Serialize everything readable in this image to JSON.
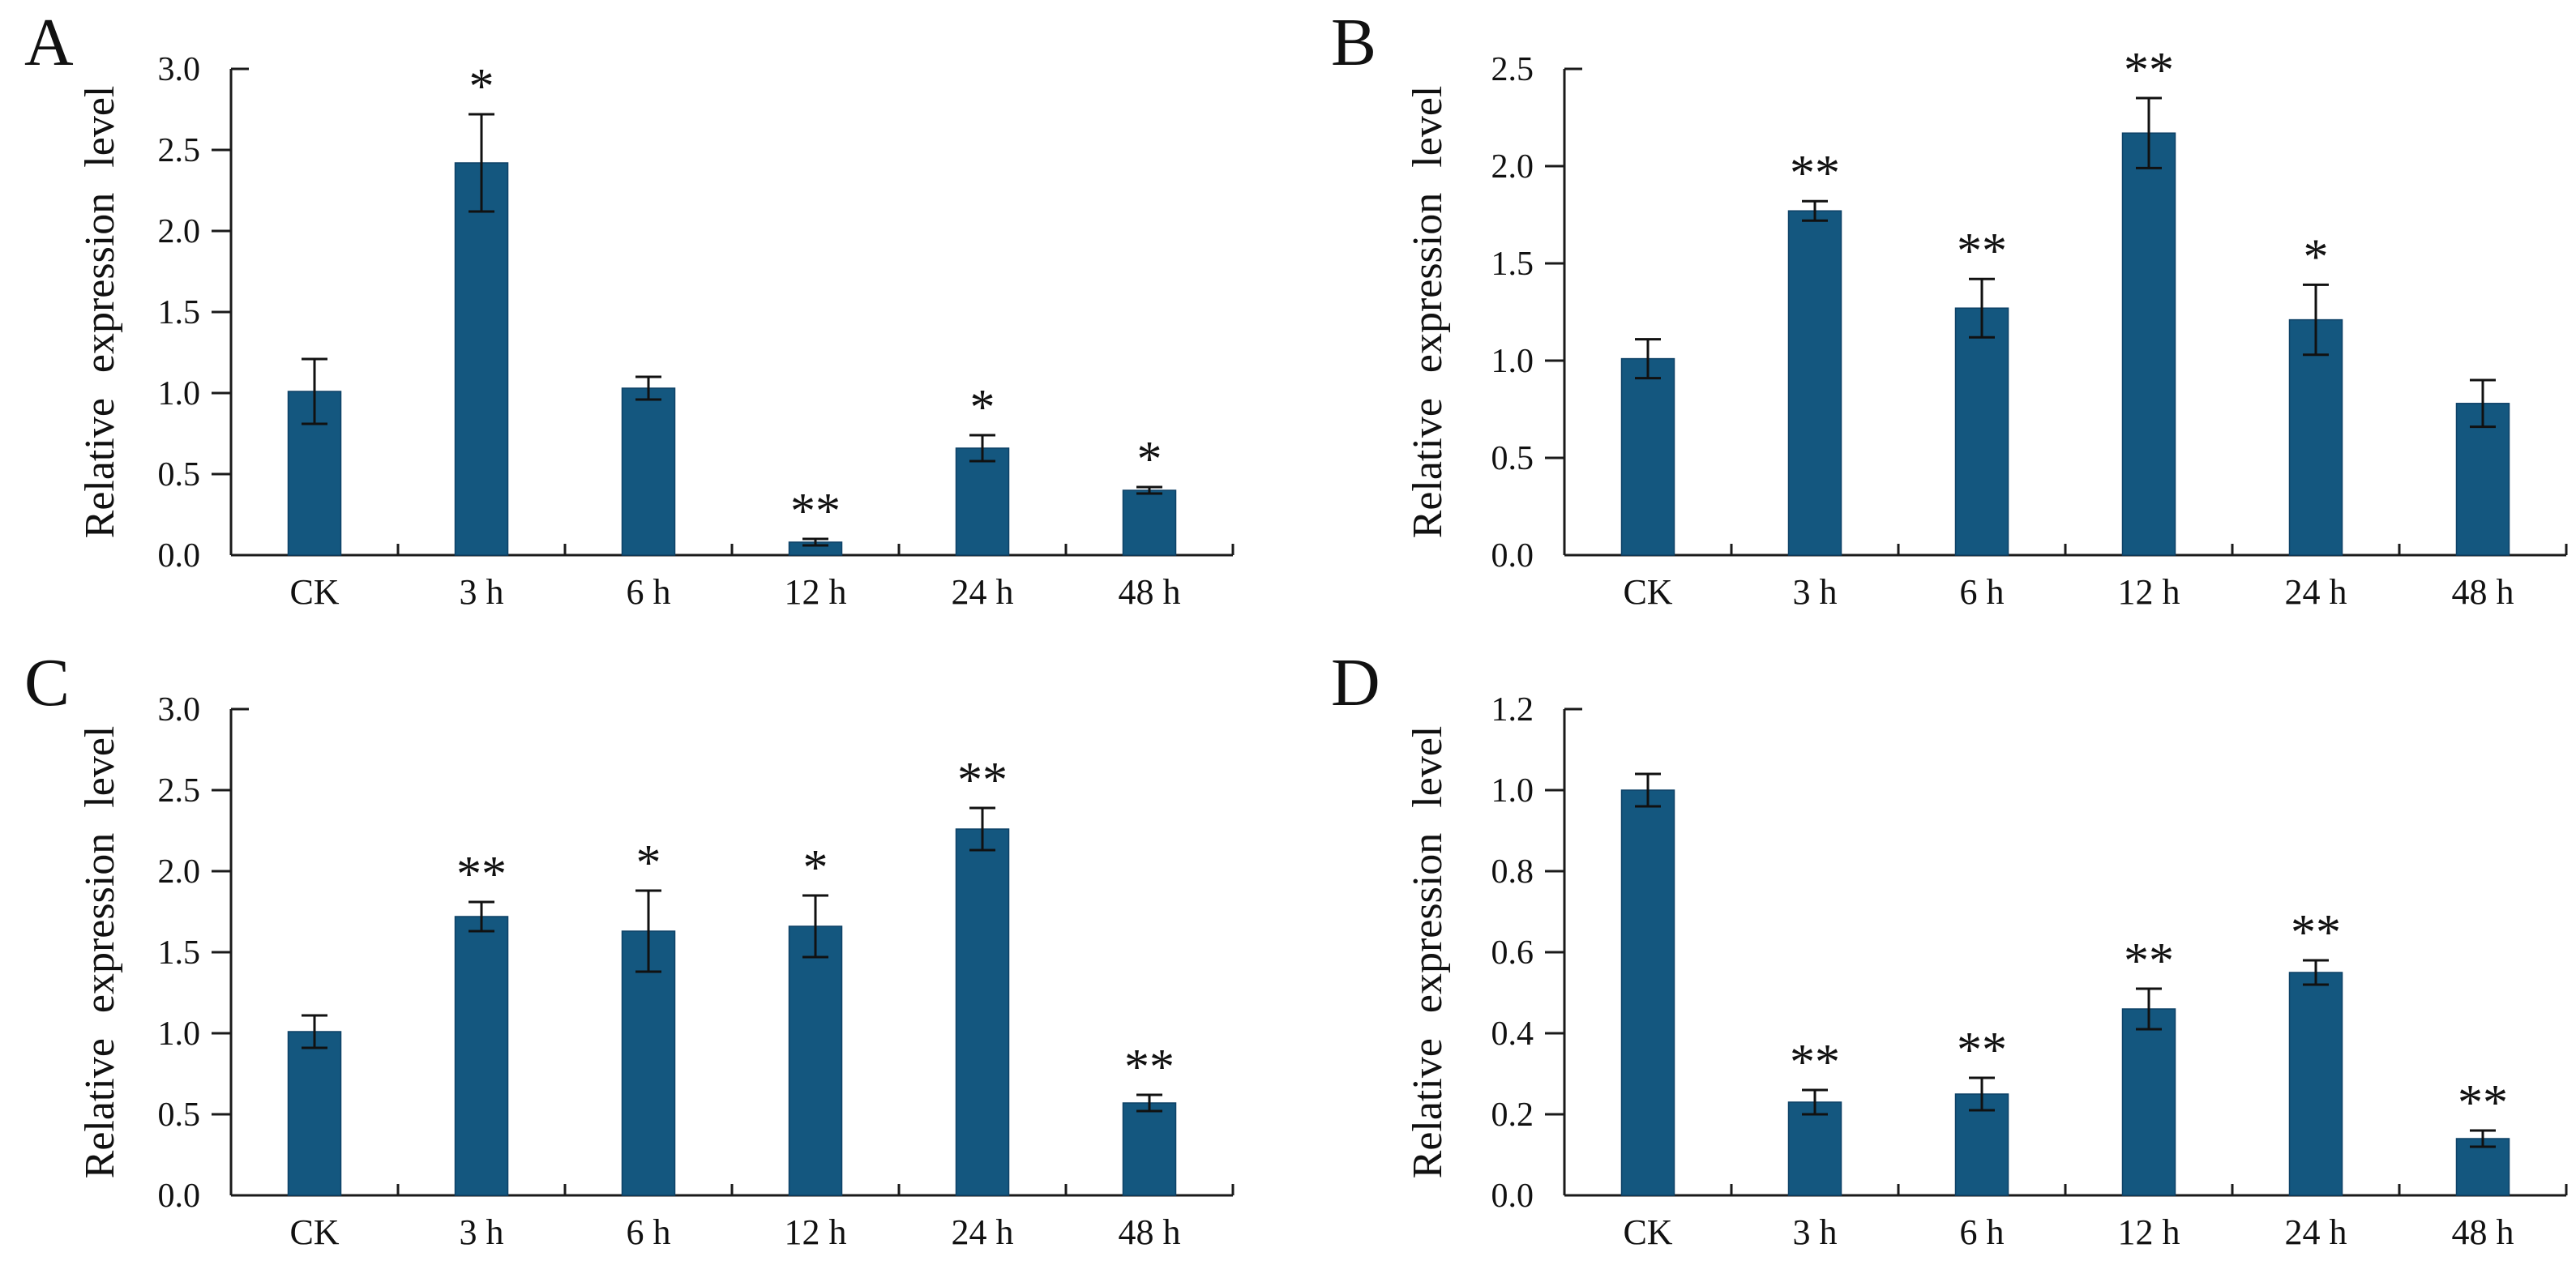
{
  "figure": {
    "background": "#ffffff",
    "panels_order": [
      "A",
      "B",
      "C",
      "D"
    ]
  },
  "colors": {
    "bar_fill": "#14577f",
    "bar_stroke": "#0d4167",
    "axis": "#1a1a1a",
    "error_bar": "#111111",
    "text": "#111111"
  },
  "chart_data": [
    {
      "type": "bar",
      "panel_label": "A",
      "title": "",
      "xlabel": "",
      "ylabel": "Relative expression level",
      "ylim": [
        0,
        3.0
      ],
      "ytick_step": 0.5,
      "grid": false,
      "legend": false,
      "categories": [
        "CK",
        "3 h",
        "6 h",
        "12 h",
        "24 h",
        "48 h"
      ],
      "values": [
        1.01,
        2.42,
        1.03,
        0.08,
        0.66,
        0.4
      ],
      "errors": [
        0.2,
        0.3,
        0.07,
        0.02,
        0.08,
        0.02
      ],
      "significance": [
        "",
        "*",
        "",
        "**",
        "*",
        "*"
      ]
    },
    {
      "type": "bar",
      "panel_label": "B",
      "title": "",
      "xlabel": "",
      "ylabel": "Relative expression level",
      "ylim": [
        0,
        2.5
      ],
      "ytick_step": 0.5,
      "grid": false,
      "legend": false,
      "categories": [
        "CK",
        "3 h",
        "6 h",
        "12 h",
        "24 h",
        "48 h"
      ],
      "values": [
        1.01,
        1.77,
        1.27,
        2.17,
        1.21,
        0.78
      ],
      "errors": [
        0.1,
        0.05,
        0.15,
        0.18,
        0.18,
        0.12
      ],
      "significance": [
        "",
        "**",
        "**",
        "**",
        "*",
        ""
      ]
    },
    {
      "type": "bar",
      "panel_label": "C",
      "title": "",
      "xlabel": "",
      "ylabel": "Relative expression level",
      "ylim": [
        0,
        3.0
      ],
      "ytick_step": 0.5,
      "grid": false,
      "legend": false,
      "categories": [
        "CK",
        "3 h",
        "6 h",
        "12 h",
        "24 h",
        "48 h"
      ],
      "values": [
        1.01,
        1.72,
        1.63,
        1.66,
        2.26,
        0.57
      ],
      "errors": [
        0.1,
        0.09,
        0.25,
        0.19,
        0.13,
        0.05
      ],
      "significance": [
        "",
        "**",
        "*",
        "*",
        "**",
        "**"
      ]
    },
    {
      "type": "bar",
      "panel_label": "D",
      "title": "",
      "xlabel": "",
      "ylabel": "Relative expression level",
      "ylim": [
        0,
        1.2
      ],
      "ytick_step": 0.2,
      "grid": false,
      "legend": false,
      "categories": [
        "CK",
        "3 h",
        "6 h",
        "12 h",
        "24 h",
        "48 h"
      ],
      "values": [
        1.0,
        0.23,
        0.25,
        0.46,
        0.55,
        0.14
      ],
      "errors": [
        0.04,
        0.03,
        0.04,
        0.05,
        0.03,
        0.02
      ],
      "significance": [
        "",
        "**",
        "**",
        "**",
        "**",
        "**"
      ]
    }
  ]
}
